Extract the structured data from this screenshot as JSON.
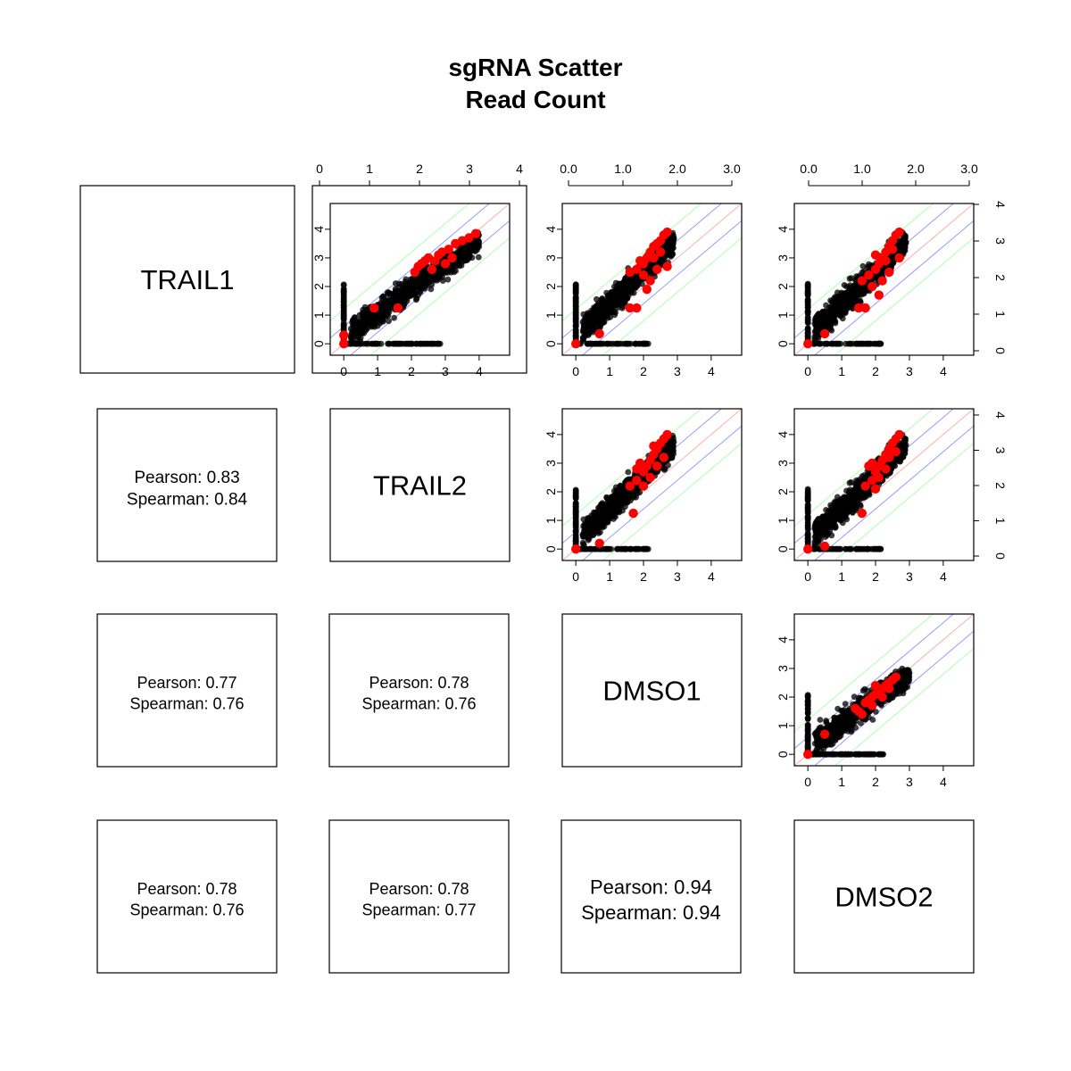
{
  "title_line1": "sgRNA Scatter",
  "title_line2": "Read Count",
  "variables": [
    "TRAIL1",
    "TRAIL2",
    "DMSO1",
    "DMSO2"
  ],
  "axis_ticks": {
    "outer_top_col1": [
      "0",
      "1",
      "2",
      "3",
      "4"
    ],
    "outer_top_col23": [
      "0.0",
      "1.0",
      "2.0",
      "3.0"
    ],
    "outer_right_rows12": [
      "0",
      "1",
      "2",
      "3",
      "4"
    ],
    "panel": [
      "0",
      "1",
      "2",
      "3",
      "4"
    ]
  },
  "colors": {
    "points": "#000000",
    "highlight": "#ff0000",
    "diagonal": "#ff9999",
    "band1": "#8080ff",
    "band2": "#99ff99"
  },
  "chart_data": {
    "type": "scatter",
    "title": "sgRNA Scatter\nRead Count",
    "variables": [
      "TRAIL1",
      "TRAIL2",
      "DMSO1",
      "DMSO2"
    ],
    "diagonal_labels": [
      "TRAIL1",
      "TRAIL2",
      "DMSO1",
      "DMSO2"
    ],
    "correlations": [
      {
        "pair": [
          "TRAIL1",
          "TRAIL2"
        ],
        "pearson_label": "Pearson: 0.83",
        "spearman_label": "Spearman: 0.84",
        "pearson": 0.83,
        "spearman": 0.84
      },
      {
        "pair": [
          "TRAIL1",
          "DMSO1"
        ],
        "pearson_label": "Pearson: 0.77",
        "spearman_label": "Spearman: 0.76",
        "pearson": 0.77,
        "spearman": 0.76
      },
      {
        "pair": [
          "TRAIL2",
          "DMSO1"
        ],
        "pearson_label": "Pearson: 0.78",
        "spearman_label": "Spearman: 0.76",
        "pearson": 0.78,
        "spearman": 0.76
      },
      {
        "pair": [
          "TRAIL1",
          "DMSO2"
        ],
        "pearson_label": "Pearson: 0.78",
        "spearman_label": "Spearman: 0.76",
        "pearson": 0.78,
        "spearman": 0.76
      },
      {
        "pair": [
          "TRAIL2",
          "DMSO2"
        ],
        "pearson_label": "Pearson: 0.78",
        "spearman_label": "Spearman: 0.77",
        "pearson": 0.78,
        "spearman": 0.77
      },
      {
        "pair": [
          "DMSO1",
          "DMSO2"
        ],
        "pearson_label": "Pearson: 0.94",
        "spearman_label": "Spearman: 0.94",
        "pearson": 0.94,
        "spearman": 0.94
      }
    ],
    "panel_axis": {
      "xlim": [
        -0.4,
        4.9
      ],
      "ylim": [
        -0.4,
        4.9
      ]
    },
    "reference_lines": [
      {
        "color": "red",
        "intercepts": [
          0
        ]
      },
      {
        "color": "blue",
        "intercepts": [
          -0.6,
          0.6
        ]
      },
      {
        "color": "green",
        "intercepts": [
          -1.2,
          1.2
        ]
      }
    ],
    "panels": [
      {
        "x": "TRAIL1",
        "y": "TRAIL2",
        "cloud_xmax": 4.0,
        "cloud_ymax": 3.9,
        "highlighted": [
          [
            0,
            0
          ],
          [
            0,
            0.3
          ],
          [
            0.9,
            1.25
          ],
          [
            1.6,
            1.25
          ],
          [
            2.1,
            2.5
          ],
          [
            2.3,
            2.8
          ],
          [
            2.5,
            3.0
          ],
          [
            2.7,
            2.9
          ],
          [
            2.9,
            3.2
          ],
          [
            3.1,
            3.3
          ],
          [
            3.3,
            3.5
          ],
          [
            3.5,
            3.6
          ],
          [
            3.7,
            3.7
          ],
          [
            3.9,
            3.85
          ],
          [
            2.2,
            2.7
          ],
          [
            2.6,
            2.6
          ],
          [
            3.0,
            2.8
          ],
          [
            2.4,
            2.9
          ],
          [
            2.8,
            3.1
          ],
          [
            3.2,
            3.0
          ]
        ]
      },
      {
        "x": "TRAIL1",
        "y": "DMSO1",
        "cloud_xmax": 2.9,
        "cloud_ymax": 3.9,
        "highlighted": [
          [
            0,
            0
          ],
          [
            0.7,
            0.35
          ],
          [
            1.6,
            1.25
          ],
          [
            1.8,
            1.25
          ],
          [
            1.6,
            2.5
          ],
          [
            1.8,
            2.6
          ],
          [
            2.0,
            2.8
          ],
          [
            2.1,
            3.0
          ],
          [
            2.2,
            3.2
          ],
          [
            2.3,
            3.4
          ],
          [
            2.4,
            3.5
          ],
          [
            2.5,
            3.6
          ],
          [
            2.6,
            3.8
          ],
          [
            2.7,
            3.9
          ],
          [
            2.0,
            2.4
          ],
          [
            2.2,
            2.2
          ],
          [
            2.4,
            2.6
          ],
          [
            1.9,
            2.9
          ],
          [
            2.3,
            3.0
          ],
          [
            2.5,
            3.2
          ],
          [
            2.7,
            2.7
          ],
          [
            2.1,
            1.9
          ]
        ]
      },
      {
        "x": "TRAIL1",
        "y": "DMSO2",
        "cloud_xmax": 2.9,
        "cloud_ymax": 3.9,
        "highlighted": [
          [
            0,
            0
          ],
          [
            0.5,
            0.35
          ],
          [
            1.5,
            1.25
          ],
          [
            1.7,
            1.25
          ],
          [
            1.6,
            2.2
          ],
          [
            1.8,
            2.4
          ],
          [
            2.0,
            2.6
          ],
          [
            2.1,
            2.8
          ],
          [
            2.2,
            3.0
          ],
          [
            2.3,
            3.2
          ],
          [
            2.4,
            3.4
          ],
          [
            2.5,
            3.6
          ],
          [
            2.6,
            3.8
          ],
          [
            2.7,
            3.9
          ],
          [
            1.9,
            2.0
          ],
          [
            2.2,
            2.2
          ],
          [
            2.4,
            2.5
          ],
          [
            2.0,
            3.1
          ],
          [
            2.3,
            2.9
          ],
          [
            2.5,
            3.3
          ],
          [
            2.7,
            3.0
          ],
          [
            2.1,
            1.7
          ]
        ]
      },
      {
        "x": "TRAIL2",
        "y": "DMSO1",
        "cloud_xmax": 2.9,
        "cloud_ymax": 4.0,
        "highlighted": [
          [
            0,
            0
          ],
          [
            0.7,
            0.2
          ],
          [
            1.7,
            1.25
          ],
          [
            1.6,
            2.2
          ],
          [
            1.8,
            2.4
          ],
          [
            2.0,
            2.7
          ],
          [
            2.1,
            2.9
          ],
          [
            2.2,
            3.1
          ],
          [
            2.3,
            3.3
          ],
          [
            2.4,
            3.5
          ],
          [
            2.5,
            3.7
          ],
          [
            2.6,
            3.85
          ],
          [
            2.7,
            4.0
          ],
          [
            1.9,
            3.0
          ],
          [
            2.2,
            2.5
          ],
          [
            2.4,
            2.9
          ],
          [
            2.0,
            2.2
          ],
          [
            2.3,
            3.6
          ],
          [
            2.6,
            3.2
          ],
          [
            1.8,
            2.8
          ]
        ]
      },
      {
        "x": "TRAIL2",
        "y": "DMSO2",
        "cloud_xmax": 2.9,
        "cloud_ymax": 4.0,
        "highlighted": [
          [
            0,
            0
          ],
          [
            0.5,
            0.1
          ],
          [
            1.6,
            1.25
          ],
          [
            1.7,
            2.2
          ],
          [
            1.9,
            2.4
          ],
          [
            2.0,
            2.7
          ],
          [
            2.1,
            2.9
          ],
          [
            2.2,
            3.1
          ],
          [
            2.3,
            3.3
          ],
          [
            2.4,
            3.5
          ],
          [
            2.5,
            3.7
          ],
          [
            2.6,
            3.85
          ],
          [
            2.7,
            4.0
          ],
          [
            1.8,
            2.9
          ],
          [
            2.1,
            2.5
          ],
          [
            2.3,
            2.8
          ],
          [
            2.0,
            2.1
          ],
          [
            2.4,
            3.2
          ],
          [
            2.6,
            3.4
          ],
          [
            1.9,
            3.0
          ]
        ]
      },
      {
        "x": "DMSO1",
        "y": "DMSO2",
        "cloud_xmax": 3.0,
        "cloud_ymax": 3.0,
        "highlighted": [
          [
            0,
            0
          ],
          [
            0.5,
            0.7
          ],
          [
            1.4,
            1.6
          ],
          [
            1.5,
            1.5
          ],
          [
            1.7,
            1.8
          ],
          [
            1.8,
            1.9
          ],
          [
            1.9,
            2.0
          ],
          [
            2.0,
            2.1
          ],
          [
            2.1,
            2.2
          ],
          [
            2.2,
            2.3
          ],
          [
            2.3,
            2.4
          ],
          [
            2.4,
            2.5
          ],
          [
            2.5,
            2.6
          ],
          [
            2.6,
            2.7
          ],
          [
            1.6,
            1.4
          ],
          [
            1.9,
            1.7
          ],
          [
            2.2,
            2.0
          ],
          [
            2.4,
            2.3
          ],
          [
            2.0,
            2.4
          ]
        ]
      }
    ]
  }
}
